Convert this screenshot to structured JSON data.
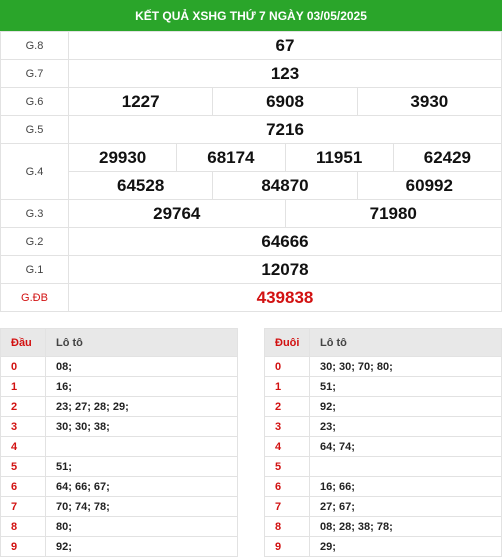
{
  "header": {
    "title": "KẾT QUẢ XSHG THỨ 7 NGÀY 03/05/2025"
  },
  "prizes": {
    "g8": {
      "label": "G.8",
      "values": [
        "67"
      ]
    },
    "g7": {
      "label": "G.7",
      "values": [
        "123"
      ]
    },
    "g6": {
      "label": "G.6",
      "values": [
        "1227",
        "6908",
        "3930"
      ]
    },
    "g5": {
      "label": "G.5",
      "values": [
        "7216"
      ]
    },
    "g4": {
      "label": "G.4",
      "values": [
        "29930",
        "68174",
        "11951",
        "62429",
        "64528",
        "84870",
        "60992"
      ]
    },
    "g3": {
      "label": "G.3",
      "values": [
        "29764",
        "71980"
      ]
    },
    "g2": {
      "label": "G.2",
      "values": [
        "64666"
      ]
    },
    "g1": {
      "label": "G.1",
      "values": [
        "12078"
      ]
    },
    "gdb": {
      "label": "G.ĐB",
      "values": [
        "439838"
      ]
    }
  },
  "loto_head": {
    "col_key": "Đầu",
    "col_val": "Lô tô",
    "rows": [
      {
        "key": "0",
        "val": "08;"
      },
      {
        "key": "1",
        "val": "16;"
      },
      {
        "key": "2",
        "val": "23; 27; 28; 29;"
      },
      {
        "key": "3",
        "val": "30; 30; 38;"
      },
      {
        "key": "4",
        "val": ""
      },
      {
        "key": "5",
        "val": "51;"
      },
      {
        "key": "6",
        "val": "64; 66; 67;"
      },
      {
        "key": "7",
        "val": "70; 74; 78;"
      },
      {
        "key": "8",
        "val": "80;"
      },
      {
        "key": "9",
        "val": "92;"
      }
    ]
  },
  "loto_tail": {
    "col_key": "Đuôi",
    "col_val": "Lô tô",
    "rows": [
      {
        "key": "0",
        "val": "30; 30; 70; 80;"
      },
      {
        "key": "1",
        "val": "51;"
      },
      {
        "key": "2",
        "val": "92;"
      },
      {
        "key": "3",
        "val": "23;"
      },
      {
        "key": "4",
        "val": "64; 74;"
      },
      {
        "key": "5",
        "val": ""
      },
      {
        "key": "6",
        "val": "16; 66;"
      },
      {
        "key": "7",
        "val": "27; 67;"
      },
      {
        "key": "8",
        "val": "08; 28; 38; 78;"
      },
      {
        "key": "9",
        "val": "29;"
      }
    ]
  },
  "colors": {
    "header_bg": "#2aa52a",
    "special": "#d21111",
    "table_head_bg": "#e8e8e8"
  }
}
